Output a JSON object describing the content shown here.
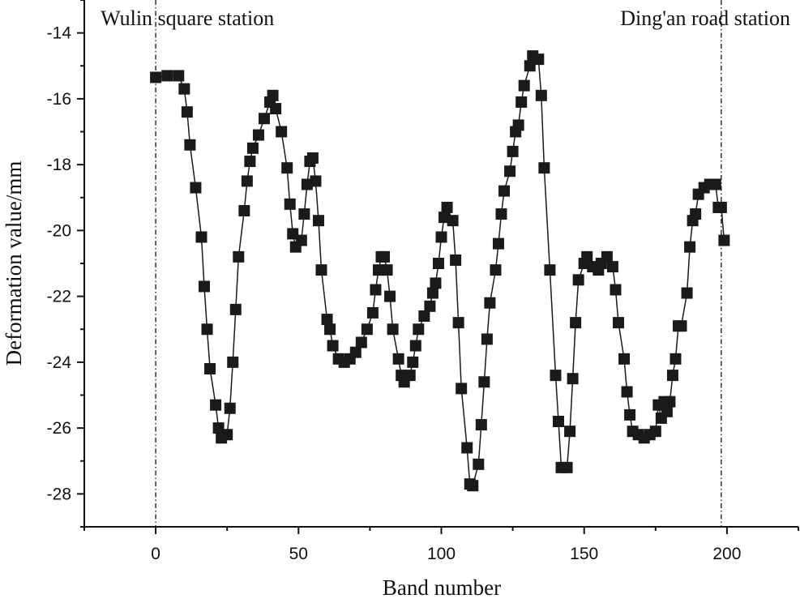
{
  "chart_data": {
    "type": "line",
    "x_label": "Band number",
    "y_label": "Deformation value/mm",
    "x": [
      0,
      4,
      8,
      10,
      11,
      12,
      14,
      16,
      17,
      18,
      19,
      21,
      22,
      23,
      25,
      26,
      27,
      28,
      29,
      31,
      32,
      33,
      34,
      36,
      38,
      40,
      41,
      42,
      44,
      46,
      47,
      48,
      49,
      51,
      52,
      53,
      54,
      55,
      56,
      57,
      58,
      60,
      61,
      62,
      64,
      66,
      68,
      70,
      72,
      74,
      76,
      77,
      78,
      79,
      80,
      81,
      82,
      83,
      85,
      86,
      87,
      89,
      90,
      91,
      92,
      94,
      96,
      97,
      98,
      99,
      100,
      101,
      102,
      104,
      105,
      106,
      107,
      109,
      110,
      111,
      113,
      114,
      115,
      116,
      117,
      119,
      120,
      121,
      122,
      124,
      125,
      126,
      127,
      128,
      129,
      131,
      132,
      134,
      135,
      136,
      138,
      140,
      141,
      142,
      144,
      145,
      146,
      147,
      148,
      150,
      151,
      153,
      155,
      156,
      158,
      160,
      161,
      162,
      164,
      165,
      166,
      167,
      169,
      171,
      173,
      175,
      176,
      177,
      178,
      179,
      180,
      181,
      182,
      183,
      184,
      186,
      187,
      188,
      189,
      190,
      192,
      194,
      196,
      197,
      198,
      199
    ],
    "series": [
      {
        "color": "#1a1a1a",
        "values": [
          -15.35,
          -15.3,
          -15.3,
          -15.7,
          -16.4,
          -17.4,
          -18.7,
          -20.2,
          -21.7,
          -23.0,
          -24.2,
          -25.3,
          -26.0,
          -26.3,
          -26.2,
          -25.4,
          -24.0,
          -22.4,
          -20.8,
          -19.4,
          -18.5,
          -17.9,
          -17.5,
          -17.1,
          -16.6,
          -16.1,
          -15.9,
          -16.3,
          -17.0,
          -18.1,
          -19.2,
          -20.1,
          -20.5,
          -20.3,
          -19.5,
          -18.6,
          -17.9,
          -17.8,
          -18.5,
          -19.7,
          -21.2,
          -22.7,
          -23.0,
          -23.5,
          -23.9,
          -24.0,
          -23.9,
          -23.7,
          -23.4,
          -23.0,
          -22.5,
          -21.8,
          -21.2,
          -20.8,
          -20.8,
          -21.2,
          -22.0,
          -23.0,
          -23.9,
          -24.4,
          -24.6,
          -24.4,
          -24.0,
          -23.5,
          -23.0,
          -22.6,
          -22.3,
          -21.9,
          -21.6,
          -21.0,
          -20.2,
          -19.6,
          -19.3,
          -19.7,
          -20.9,
          -22.8,
          -24.8,
          -26.6,
          -27.7,
          -27.75,
          -27.1,
          -25.9,
          -24.6,
          -23.3,
          -22.2,
          -21.2,
          -20.4,
          -19.5,
          -18.8,
          -18.2,
          -17.6,
          -17.0,
          -16.8,
          -16.1,
          -15.6,
          -15.0,
          -14.7,
          -14.8,
          -15.9,
          -18.1,
          -21.2,
          -24.4,
          -25.8,
          -27.2,
          -27.2,
          -26.1,
          -24.5,
          -22.8,
          -21.5,
          -21.0,
          -20.8,
          -21.1,
          -21.2,
          -21.0,
          -20.8,
          -21.1,
          -21.8,
          -22.8,
          -23.9,
          -24.9,
          -25.6,
          -26.1,
          -26.2,
          -26.3,
          -26.2,
          -26.1,
          -25.3,
          -25.7,
          -25.2,
          -25.5,
          -25.2,
          -24.4,
          -23.9,
          -22.9,
          -22.9,
          -21.9,
          -20.5,
          -19.7,
          -19.5,
          -18.9,
          -18.7,
          -18.6,
          -18.6,
          -19.3,
          -19.3,
          -20.3
        ]
      }
    ],
    "xlim": [
      -25,
      225
    ],
    "xticks": [
      0,
      50,
      100,
      150,
      200
    ],
    "xminorticks": [
      -25,
      25,
      75,
      125,
      175,
      225
    ],
    "ylim": [
      -29,
      -13
    ],
    "yticks": [
      -28,
      -26,
      -24,
      -22,
      -20,
      -18,
      -16,
      -14
    ],
    "yminorticks": [
      -29,
      -27,
      -25,
      -23,
      -21,
      -19,
      -17,
      -15,
      -13
    ],
    "vlines": [
      {
        "x": 0,
        "label": "Wulin square station"
      },
      {
        "x": 198,
        "label": "Ding'an road station"
      }
    ]
  }
}
